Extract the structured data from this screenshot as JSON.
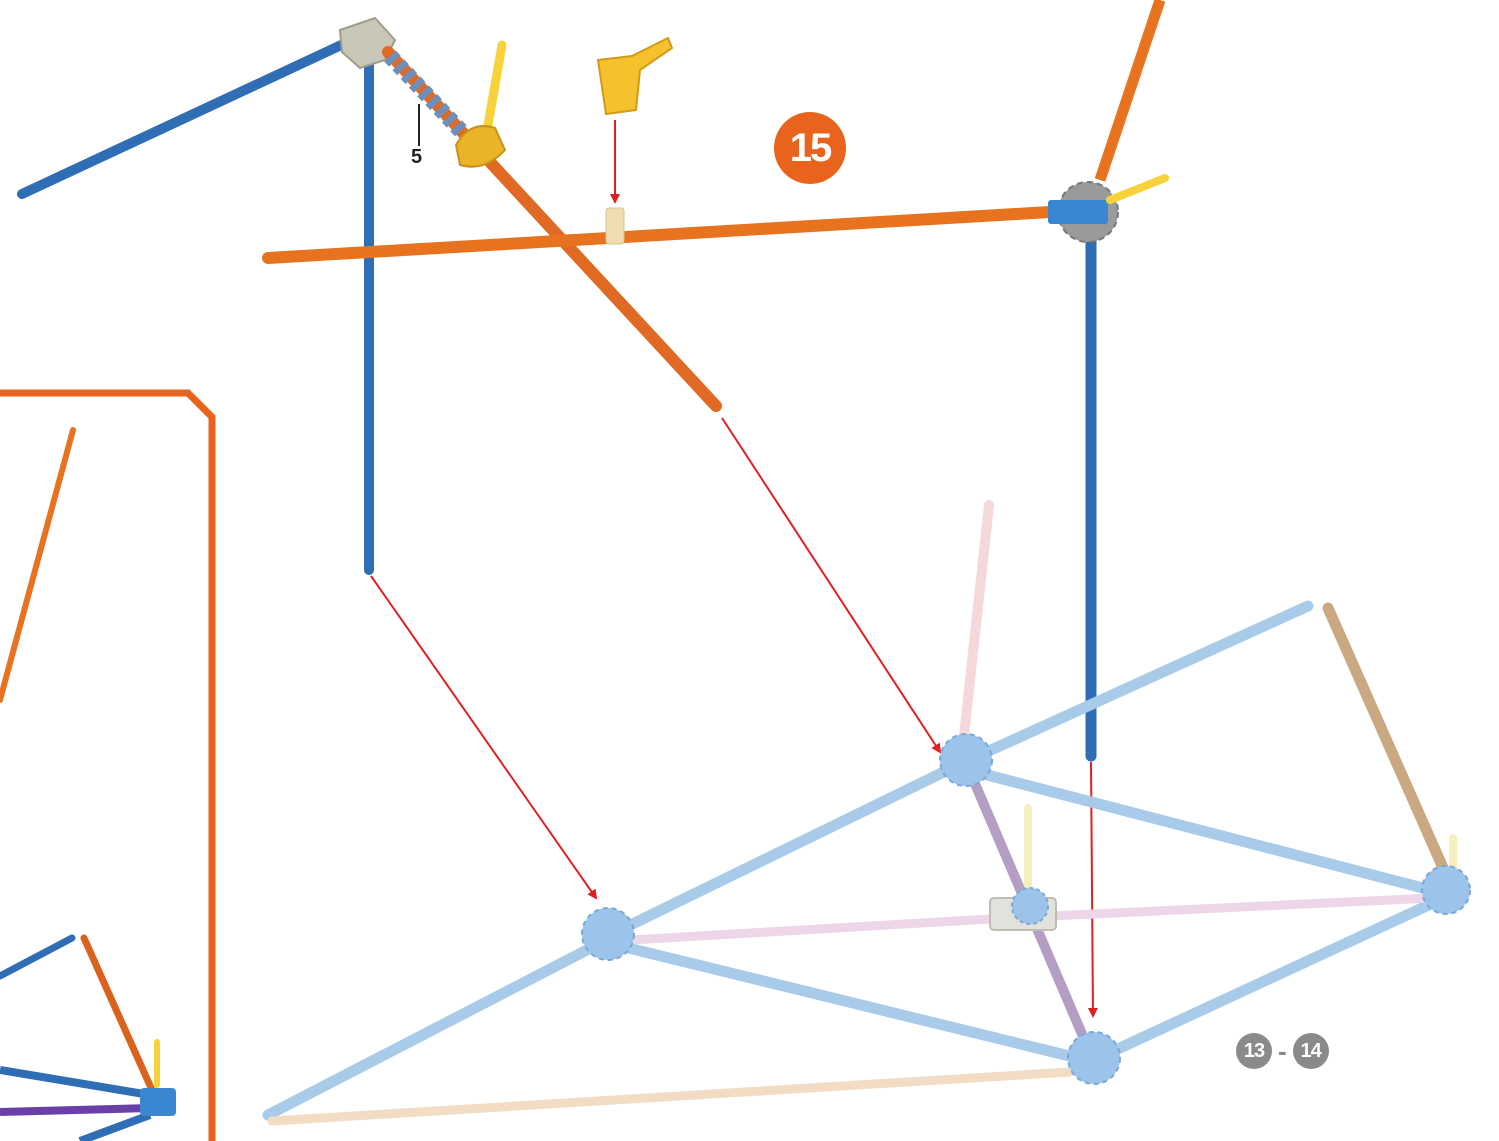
{
  "step": {
    "number": "15"
  },
  "previous_steps": {
    "from": "13",
    "separator": "-",
    "to": "14"
  },
  "callout": {
    "label": "5"
  },
  "colors": {
    "step_badge": "#e8641c",
    "ref_badge": "#8a8a8a",
    "inset_frame": "#e8641c",
    "arrow": "#e02020",
    "rod_blue": "#2f6db5",
    "rod_orange": "#e8731f",
    "rod_light_blue": "#a9cbea",
    "rod_pink": "#f4d8dc",
    "rod_purple": "#b49ec4",
    "rod_tan": "#c9a882",
    "rod_beige": "#f2dcc4",
    "connector_yellow": "#f7d23a",
    "connector_gray": "#9a9a9a",
    "connector_light_blue": "#9cc4ea"
  },
  "icons": [
    "step-number-badge",
    "reference-step-badge",
    "assembly-arrow",
    "rod",
    "connector-hub"
  ]
}
